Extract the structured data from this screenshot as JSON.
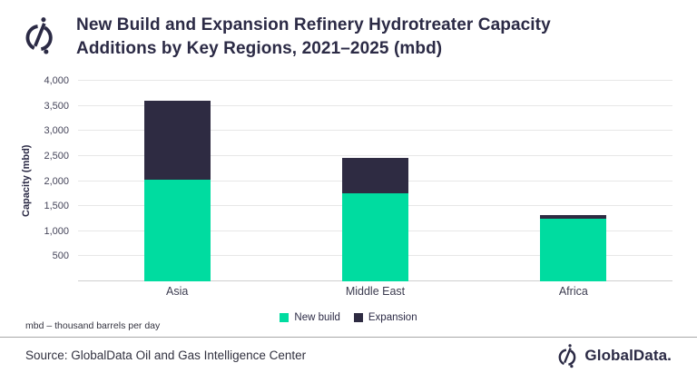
{
  "header": {
    "title_line1": "New Build and Expansion Refinery Hydrotreater Capacity",
    "title_line2": "Additions by Key Regions, 2021–2025 (mbd)"
  },
  "chart_data": {
    "type": "bar",
    "stacked": true,
    "title": "New Build and Expansion Refinery Hydrotreater Capacity Additions by Key Regions, 2021–2025 (mbd)",
    "categories": [
      "Asia",
      "Middle East",
      "Africa"
    ],
    "series": [
      {
        "name": "New build",
        "color": "#00DCA0",
        "values": [
          2030,
          1750,
          1250
        ]
      },
      {
        "name": "Expansion",
        "color": "#2E2B42",
        "values": [
          1570,
          720,
          80
        ]
      }
    ],
    "totals": [
      3600,
      2470,
      1330
    ],
    "xlabel": "",
    "ylabel": "Capacity (mbd)",
    "ylim": [
      0,
      4000
    ],
    "ytick_step": 500,
    "ytick_labels": [
      "500",
      "1,000",
      "1,500",
      "2,000",
      "2,500",
      "3,000",
      "3,500",
      "4,000"
    ],
    "grid": true,
    "legend_position": "bottom-center"
  },
  "footnote": "mbd – thousand barrels per day",
  "footer": {
    "source": "Source: GlobalData Oil and Gas Intelligence Center",
    "brand": "GlobalData."
  },
  "colors": {
    "accent_green": "#00DCA0",
    "navy": "#2B2A45",
    "gridline": "#E7E7E7"
  }
}
